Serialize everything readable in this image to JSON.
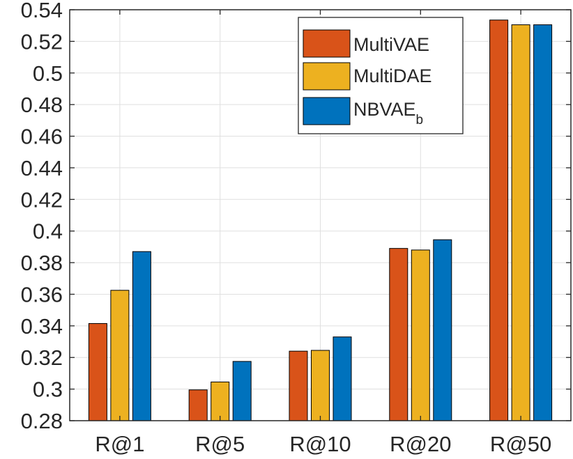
{
  "chart_data": {
    "type": "bar",
    "title": "",
    "xlabel": "",
    "ylabel": "",
    "categories": [
      "R@1",
      "R@5",
      "R@10",
      "R@20",
      "R@50"
    ],
    "ylim": [
      0.28,
      0.54
    ],
    "yticks": [
      "0.28",
      "0.3",
      "0.32",
      "0.34",
      "0.36",
      "0.38",
      "0.4",
      "0.42",
      "0.44",
      "0.46",
      "0.48",
      "0.5",
      "0.52",
      "0.54"
    ],
    "ytick_values": [
      0.28,
      0.3,
      0.32,
      0.34,
      0.36,
      0.38,
      0.4,
      0.42,
      0.44,
      0.46,
      0.48,
      0.5,
      0.52,
      0.54
    ],
    "grid": true,
    "legend_position": "top-right",
    "series": [
      {
        "name": "MultiVAE",
        "color": "#D95319",
        "values": [
          0.3415,
          0.2995,
          0.324,
          0.389,
          0.5335
        ]
      },
      {
        "name": "MultiDAE",
        "color": "#EDB120",
        "values": [
          0.3625,
          0.3045,
          0.3245,
          0.388,
          0.5305
        ]
      },
      {
        "name": "NBVAE",
        "name_subscript": "b",
        "color": "#0072BD",
        "values": [
          0.387,
          0.3175,
          0.333,
          0.3945,
          0.5305
        ]
      }
    ]
  }
}
